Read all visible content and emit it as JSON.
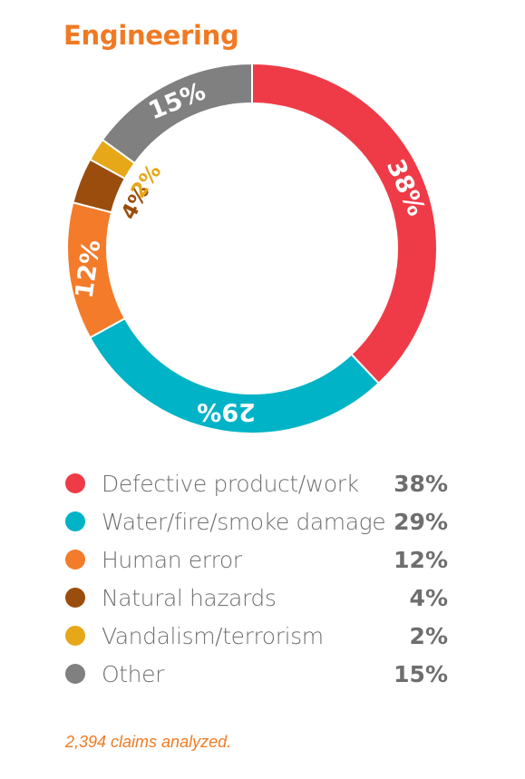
{
  "chart_data": {
    "type": "pie",
    "title": "Engineering",
    "categories": [
      "Defective product/work",
      "Water/fire/smoke damage",
      "Human error",
      "Natural hazards",
      "Vandalism/terrorism",
      "Other"
    ],
    "values": [
      38,
      29,
      12,
      4,
      2,
      15
    ],
    "value_labels": [
      "38%",
      "29%",
      "12%",
      "4%",
      "2%",
      "15%"
    ],
    "colors": [
      "#ef3b47",
      "#00b3c6",
      "#f37b2a",
      "#9a4d0d",
      "#e6a719",
      "#808080"
    ],
    "label_colors": [
      "#ffffff",
      "#ffffff",
      "#ffffff",
      "#9a4d0d",
      "#e6a719",
      "#ffffff"
    ],
    "legend_placement": "bottom",
    "donut": true
  },
  "footnote": "2,394 claims analyzed."
}
